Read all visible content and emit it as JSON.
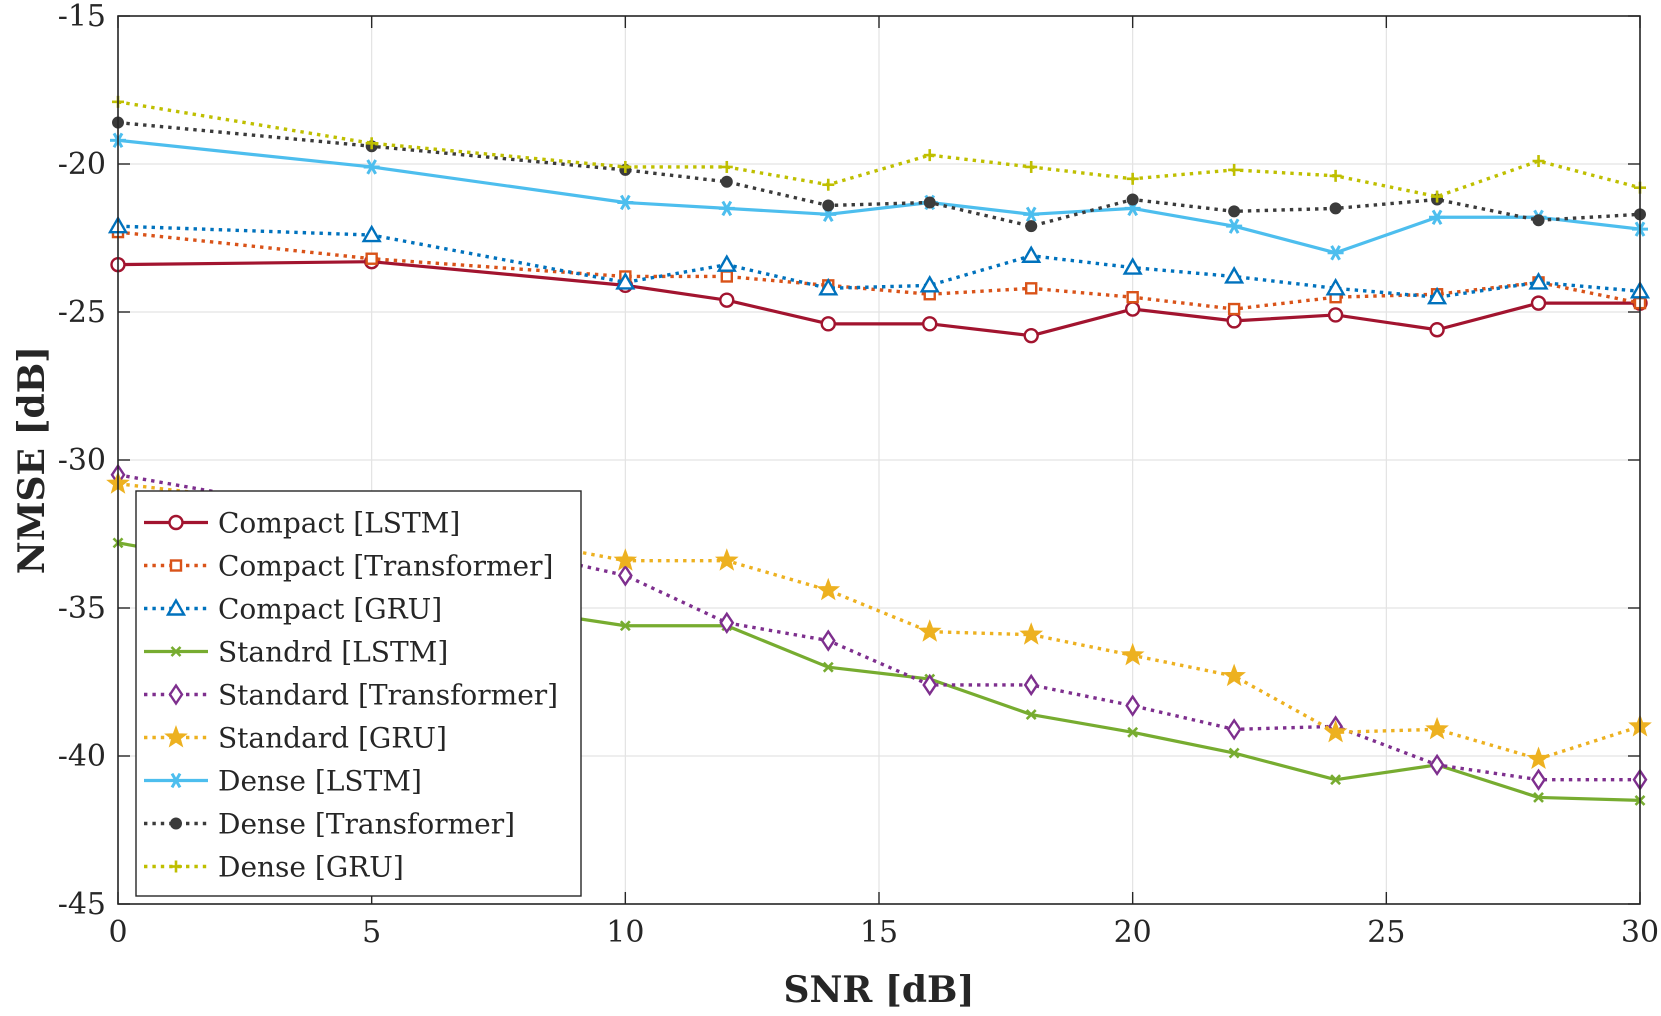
{
  "chart_data": {
    "type": "line",
    "title": "",
    "xlabel": "SNR [dB]",
    "ylabel": "NMSE [dB]",
    "xlim": [
      0,
      30
    ],
    "ylim": [
      -45,
      -15
    ],
    "xticks": [
      0,
      5,
      10,
      15,
      20,
      25,
      30
    ],
    "yticks": [
      -15,
      -20,
      -25,
      -30,
      -35,
      -40,
      -45
    ],
    "grid": true,
    "legend_position": "bottom-left",
    "x": [
      0,
      5,
      10,
      12,
      14,
      16,
      18,
      20,
      22,
      24,
      26,
      28,
      30
    ],
    "series": [
      {
        "name": "Compact [LSTM]",
        "color": "#A2142F",
        "dash": "solid",
        "marker": "circle",
        "values": [
          -23.4,
          -23.3,
          -24.1,
          -24.6,
          -25.4,
          -25.4,
          -25.8,
          -24.9,
          -25.3,
          -25.1,
          -25.6,
          -24.7,
          -24.7
        ]
      },
      {
        "name": "Compact [Transformer]",
        "color": "#D95319",
        "dash": "dotted",
        "marker": "square",
        "values": [
          -22.3,
          -23.2,
          -23.8,
          -23.8,
          -24.1,
          -24.4,
          -24.2,
          -24.5,
          -24.9,
          -24.5,
          -24.4,
          -24.0,
          -24.7
        ]
      },
      {
        "name": "Compact [GRU]",
        "color": "#0072BD",
        "dash": "dotted",
        "marker": "triangle",
        "values": [
          -22.1,
          -22.4,
          -24.0,
          -23.4,
          -24.2,
          -24.1,
          -23.1,
          -23.5,
          -23.8,
          -24.2,
          -24.5,
          -24.0,
          -24.3
        ]
      },
      {
        "name": "Standrd [LSTM]",
        "color": "#77AC30",
        "dash": "solid",
        "marker": "x",
        "values": [
          -32.8,
          -34.3,
          -35.6,
          -35.6,
          -37.0,
          -37.4,
          -38.6,
          -39.2,
          -39.9,
          -40.8,
          -40.3,
          -41.4,
          -41.5
        ]
      },
      {
        "name": "Standard [Transformer]",
        "color": "#7E2F8E",
        "dash": "dotted",
        "marker": "diamond",
        "values": [
          -30.5,
          -32.0,
          -33.9,
          -35.5,
          -36.1,
          -37.6,
          -37.6,
          -38.3,
          -39.1,
          -39.0,
          -40.3,
          -40.8,
          -40.8
        ]
      },
      {
        "name": "Standard [GRU]",
        "color": "#EDB120",
        "dash": "dotted",
        "marker": "star",
        "values": [
          -30.8,
          -31.8,
          -33.4,
          -33.4,
          -34.4,
          -35.8,
          -35.9,
          -36.6,
          -37.3,
          -39.2,
          -39.1,
          -40.1,
          -39.0
        ]
      },
      {
        "name": "Dense [LSTM]",
        "color": "#4DBEEE",
        "dash": "solid",
        "marker": "asterisk",
        "values": [
          -19.2,
          -20.1,
          -21.3,
          -21.5,
          -21.7,
          -21.3,
          -21.7,
          -21.5,
          -22.1,
          -23.0,
          -21.8,
          -21.8,
          -22.2
        ]
      },
      {
        "name": "Dense [Transformer]",
        "color": "#3b3b3b",
        "dash": "dotted",
        "marker": "dot",
        "values": [
          -18.6,
          -19.4,
          -20.2,
          -20.6,
          -21.4,
          -21.3,
          -22.1,
          -21.2,
          -21.6,
          -21.5,
          -21.2,
          -21.9,
          -21.7
        ]
      },
      {
        "name": "Dense [GRU]",
        "color": "#BFBF00",
        "dash": "dotted",
        "marker": "plus",
        "values": [
          -17.9,
          -19.3,
          -20.1,
          -20.1,
          -20.7,
          -19.7,
          -20.1,
          -20.5,
          -20.2,
          -20.4,
          -21.1,
          -19.9,
          -20.8
        ]
      }
    ]
  }
}
